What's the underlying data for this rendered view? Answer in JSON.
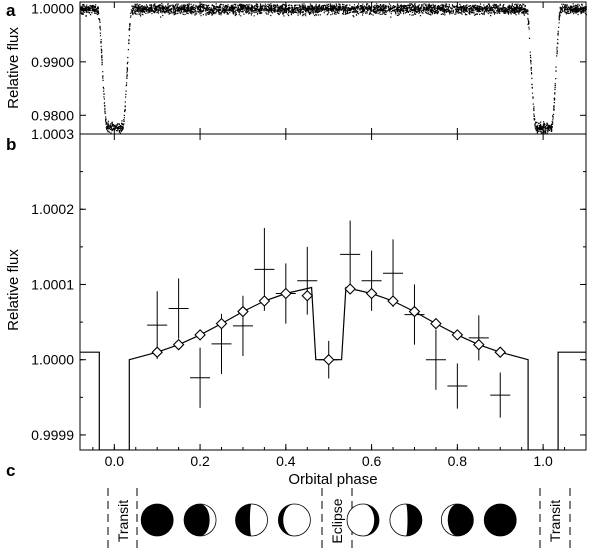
{
  "figure": {
    "panel_letters": [
      "a",
      "b",
      "c"
    ]
  },
  "chart_data": [
    {
      "id": "a",
      "type": "scatter",
      "title": "",
      "xlabel": "",
      "ylabel": "Relative flux",
      "xlim": [
        -0.08,
        1.1
      ],
      "ylim": [
        0.9765,
        1.0012
      ],
      "yticks": [
        {
          "value": 1.0,
          "label": "1.0000"
        },
        {
          "value": 0.99,
          "label": "0.9900"
        },
        {
          "value": 0.98,
          "label": "0.9800"
        }
      ],
      "transit": {
        "phases": [
          0.0,
          1.0
        ],
        "depth": 0.0222,
        "total_halfwidth": 0.04,
        "flat_halfwidth": 0.018
      },
      "baseline": 1.0,
      "noise_sigma": 0.0008
    },
    {
      "id": "b",
      "type": "line",
      "title": "",
      "xlabel": "Orbital phase",
      "ylabel": "Relative flux",
      "xlim": [
        -0.08,
        1.1
      ],
      "ylim": [
        0.99988,
        1.0003
      ],
      "yticks": [
        {
          "value": 1.0003,
          "label": "1.0003"
        },
        {
          "value": 1.0002,
          "label": "1.0002"
        },
        {
          "value": 1.0001,
          "label": "1.0001"
        },
        {
          "value": 1.0,
          "label": "1.0000"
        },
        {
          "value": 0.9999,
          "label": "0.9999"
        }
      ],
      "xticks": [
        {
          "value": 0.0,
          "label": "0.0"
        },
        {
          "value": 0.2,
          "label": "0.2"
        },
        {
          "value": 0.4,
          "label": "0.4"
        },
        {
          "value": 0.6,
          "label": "0.6"
        },
        {
          "value": 0.8,
          "label": "0.8"
        },
        {
          "value": 1.0,
          "label": "1.0"
        }
      ],
      "model_curve": [
        [
          -0.08,
          1.00001
        ],
        [
          -0.035,
          1.00001
        ],
        [
          -0.035,
          0.99988
        ],
        [
          0.035,
          0.99988
        ],
        [
          0.035,
          1.0
        ],
        [
          0.1,
          1.00001
        ],
        [
          0.15,
          1.00002
        ],
        [
          0.2,
          1.000033
        ],
        [
          0.25,
          1.000048
        ],
        [
          0.3,
          1.000064
        ],
        [
          0.35,
          1.000078
        ],
        [
          0.4,
          1.000088
        ],
        [
          0.46,
          1.000096
        ],
        [
          0.47,
          1.0
        ],
        [
          0.53,
          1.0
        ],
        [
          0.54,
          1.000096
        ],
        [
          0.6,
          1.000088
        ],
        [
          0.65,
          1.000078
        ],
        [
          0.7,
          1.000064
        ],
        [
          0.75,
          1.000048
        ],
        [
          0.8,
          1.000033
        ],
        [
          0.85,
          1.00002
        ],
        [
          0.9,
          1.00001
        ],
        [
          0.965,
          1.0
        ],
        [
          0.965,
          0.99988
        ],
        [
          1.035,
          0.99988
        ],
        [
          1.035,
          1.00001
        ],
        [
          1.1,
          1.00001
        ]
      ],
      "model_points": [
        {
          "x": 0.1,
          "y": 1.00001
        },
        {
          "x": 0.15,
          "y": 1.00002
        },
        {
          "x": 0.2,
          "y": 1.000033
        },
        {
          "x": 0.25,
          "y": 1.000048
        },
        {
          "x": 0.3,
          "y": 1.000064
        },
        {
          "x": 0.35,
          "y": 1.000078
        },
        {
          "x": 0.4,
          "y": 1.000088
        },
        {
          "x": 0.45,
          "y": 1.000085
        },
        {
          "x": 0.5,
          "y": 1.0
        },
        {
          "x": 0.55,
          "y": 1.000094
        },
        {
          "x": 0.6,
          "y": 1.000088
        },
        {
          "x": 0.65,
          "y": 1.000078
        },
        {
          "x": 0.7,
          "y": 1.000064
        },
        {
          "x": 0.75,
          "y": 1.000048
        },
        {
          "x": 0.8,
          "y": 1.000033
        },
        {
          "x": 0.85,
          "y": 1.00002
        },
        {
          "x": 0.9,
          "y": 1.00001
        }
      ],
      "observations": [
        {
          "x": 0.1,
          "y": 1.000046,
          "yerr": 4.5e-05
        },
        {
          "x": 0.15,
          "y": 1.000068,
          "yerr": 4e-05
        },
        {
          "x": 0.2,
          "y": 0.999976,
          "yerr": 4e-05
        },
        {
          "x": 0.25,
          "y": 1.000021,
          "yerr": 4e-05
        },
        {
          "x": 0.3,
          "y": 1.000045,
          "yerr": 4e-05
        },
        {
          "x": 0.35,
          "y": 1.00012,
          "yerr": 5.5e-05
        },
        {
          "x": 0.4,
          "y": 1.000088,
          "yerr": 4e-05
        },
        {
          "x": 0.45,
          "y": 1.000105,
          "yerr": 4.5e-05
        },
        {
          "x": 0.5,
          "y": 1.0,
          "yerr": 2.5e-05
        },
        {
          "x": 0.55,
          "y": 1.00014,
          "yerr": 4.5e-05
        },
        {
          "x": 0.6,
          "y": 1.000105,
          "yerr": 4e-05
        },
        {
          "x": 0.65,
          "y": 1.000115,
          "yerr": 4.5e-05
        },
        {
          "x": 0.7,
          "y": 1.00006,
          "yerr": 4e-05
        },
        {
          "x": 0.75,
          "y": 1.0,
          "yerr": 4e-05
        },
        {
          "x": 0.8,
          "y": 0.999965,
          "yerr": 3e-05
        },
        {
          "x": 0.85,
          "y": 1.000029,
          "yerr": 3e-05
        },
        {
          "x": 0.9,
          "y": 0.999953,
          "yerr": 3e-05
        }
      ]
    }
  ],
  "phase_diagram": {
    "labels": {
      "transit": "Transit",
      "eclipse": "Eclipse"
    },
    "moons": [
      {
        "x": 0.1,
        "lit": 0.0,
        "lit_side": "right"
      },
      {
        "x": 0.2,
        "lit": 0.2,
        "lit_side": "right"
      },
      {
        "x": 0.32,
        "lit": 0.55,
        "lit_side": "right"
      },
      {
        "x": 0.42,
        "lit": 0.85,
        "lit_side": "right"
      },
      {
        "x": 0.58,
        "lit": 0.85,
        "lit_side": "left"
      },
      {
        "x": 0.68,
        "lit": 0.55,
        "lit_side": "left"
      },
      {
        "x": 0.8,
        "lit": 0.2,
        "lit_side": "left"
      },
      {
        "x": 0.9,
        "lit": 0.0,
        "lit_side": "left"
      }
    ]
  }
}
